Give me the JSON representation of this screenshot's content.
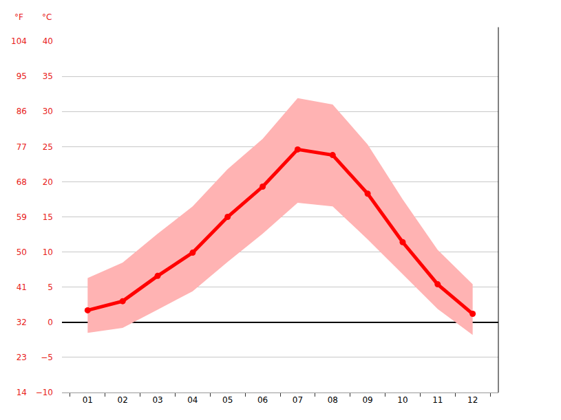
{
  "chart_data": {
    "type": "line",
    "categories": [
      "01",
      "02",
      "03",
      "04",
      "05",
      "06",
      "07",
      "08",
      "09",
      "10",
      "11",
      "12"
    ],
    "values": [
      1.7,
      3.0,
      6.6,
      9.9,
      15.0,
      19.3,
      24.6,
      23.8,
      18.3,
      11.4,
      5.4,
      1.2
    ],
    "max": [
      6.3,
      8.5,
      12.6,
      16.5,
      21.8,
      26.1,
      31.9,
      31.0,
      25.3,
      17.5,
      10.3,
      5.4
    ],
    "min": [
      -1.5,
      -0.8,
      1.8,
      4.4,
      8.6,
      12.6,
      17.0,
      16.5,
      11.8,
      6.8,
      1.9,
      -1.8
    ],
    "color": "#ff0000",
    "marker": "circle",
    "ylabel": "°C",
    "y2label": "°F",
    "ylim": [
      -10,
      40
    ],
    "yticks": [
      {
        "value": -10,
        "label": "−10"
      },
      {
        "value": -5,
        "label": "−5"
      },
      0,
      5,
      10,
      15,
      20,
      25,
      30,
      35,
      40
    ],
    "y2lim": [
      14,
      104
    ],
    "y2ticks": [
      14,
      23,
      32,
      41,
      50,
      59,
      68,
      77,
      86,
      95,
      104
    ],
    "grid": true
  }
}
